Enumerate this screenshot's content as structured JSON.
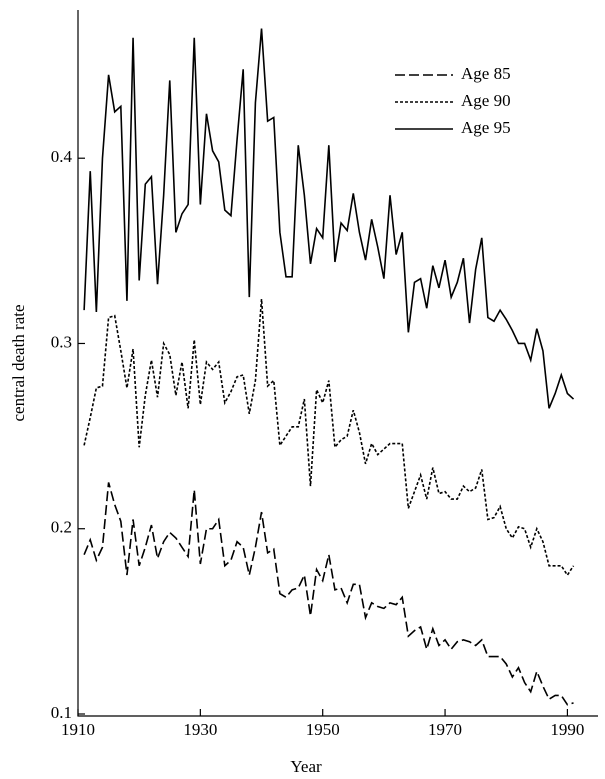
{
  "chart_data": {
    "type": "line",
    "xlabel": "Year",
    "ylabel": "central death rate",
    "x": [
      1911,
      1912,
      1913,
      1914,
      1915,
      1916,
      1917,
      1918,
      1919,
      1920,
      1921,
      1922,
      1923,
      1924,
      1925,
      1926,
      1927,
      1928,
      1929,
      1930,
      1931,
      1932,
      1933,
      1934,
      1935,
      1936,
      1937,
      1938,
      1939,
      1940,
      1941,
      1942,
      1943,
      1944,
      1945,
      1946,
      1947,
      1948,
      1949,
      1950,
      1951,
      1952,
      1953,
      1954,
      1955,
      1956,
      1957,
      1958,
      1959,
      1960,
      1961,
      1962,
      1963,
      1964,
      1965,
      1966,
      1967,
      1968,
      1969,
      1970,
      1971,
      1972,
      1973,
      1974,
      1975,
      1976,
      1977,
      1978,
      1979,
      1980,
      1981,
      1982,
      1983,
      1984,
      1985,
      1986,
      1987,
      1988,
      1989,
      1990,
      1991
    ],
    "series": [
      {
        "name": "Age 85",
        "color": "#000000",
        "line_style": "dashed",
        "values": [
          0.186,
          0.194,
          0.183,
          0.19,
          0.225,
          0.213,
          0.204,
          0.175,
          0.205,
          0.18,
          0.19,
          0.202,
          0.184,
          0.193,
          0.198,
          0.195,
          0.19,
          0.185,
          0.221,
          0.181,
          0.2,
          0.2,
          0.205,
          0.18,
          0.183,
          0.193,
          0.19,
          0.175,
          0.19,
          0.209,
          0.187,
          0.189,
          0.165,
          0.163,
          0.167,
          0.168,
          0.175,
          0.153,
          0.178,
          0.172,
          0.186,
          0.167,
          0.168,
          0.16,
          0.17,
          0.17,
          0.152,
          0.16,
          0.158,
          0.157,
          0.16,
          0.159,
          0.163,
          0.142,
          0.145,
          0.147,
          0.135,
          0.146,
          0.137,
          0.14,
          0.135,
          0.139,
          0.14,
          0.139,
          0.137,
          0.14,
          0.131,
          0.131,
          0.131,
          0.127,
          0.12,
          0.125,
          0.117,
          0.112,
          0.123,
          0.115,
          0.108,
          0.11,
          0.11,
          0.105,
          0.106
        ]
      },
      {
        "name": "Age 90",
        "color": "#000000",
        "line_style": "dotted",
        "values": [
          0.245,
          0.26,
          0.276,
          0.277,
          0.314,
          0.315,
          0.296,
          0.276,
          0.297,
          0.244,
          0.272,
          0.291,
          0.271,
          0.3,
          0.294,
          0.272,
          0.29,
          0.265,
          0.302,
          0.267,
          0.29,
          0.286,
          0.29,
          0.268,
          0.274,
          0.282,
          0.283,
          0.262,
          0.28,
          0.324,
          0.277,
          0.28,
          0.245,
          0.25,
          0.255,
          0.255,
          0.27,
          0.223,
          0.275,
          0.268,
          0.28,
          0.244,
          0.248,
          0.25,
          0.264,
          0.252,
          0.235,
          0.246,
          0.24,
          0.243,
          0.246,
          0.246,
          0.246,
          0.211,
          0.22,
          0.229,
          0.216,
          0.233,
          0.219,
          0.22,
          0.216,
          0.216,
          0.223,
          0.22,
          0.222,
          0.232,
          0.205,
          0.206,
          0.212,
          0.2,
          0.195,
          0.201,
          0.2,
          0.19,
          0.2,
          0.193,
          0.18,
          0.18,
          0.18,
          0.175,
          0.18
        ]
      },
      {
        "name": "Age 95",
        "color": "#000000",
        "line_style": "solid",
        "values": [
          0.318,
          0.393,
          0.317,
          0.4,
          0.445,
          0.425,
          0.428,
          0.323,
          0.465,
          0.334,
          0.386,
          0.39,
          0.332,
          0.38,
          0.442,
          0.36,
          0.37,
          0.375,
          0.465,
          0.375,
          0.424,
          0.404,
          0.398,
          0.372,
          0.369,
          0.41,
          0.448,
          0.325,
          0.43,
          0.47,
          0.42,
          0.422,
          0.36,
          0.336,
          0.336,
          0.407,
          0.38,
          0.343,
          0.362,
          0.357,
          0.407,
          0.344,
          0.365,
          0.361,
          0.381,
          0.36,
          0.345,
          0.367,
          0.352,
          0.335,
          0.38,
          0.348,
          0.36,
          0.306,
          0.333,
          0.335,
          0.319,
          0.342,
          0.33,
          0.345,
          0.325,
          0.333,
          0.346,
          0.311,
          0.34,
          0.357,
          0.314,
          0.312,
          0.318,
          0.313,
          0.307,
          0.3,
          0.3,
          0.291,
          0.308,
          0.296,
          0.265,
          0.273,
          0.283,
          0.273,
          0.27
        ]
      }
    ],
    "xlim": [
      1910,
      1995
    ],
    "ylim": [
      0.1,
      0.48
    ],
    "xticks": [
      1910,
      1930,
      1950,
      1970,
      1990
    ],
    "yticks": [
      0.1,
      0.2,
      0.3,
      0.4
    ],
    "grid": false,
    "legend": "upper right"
  }
}
